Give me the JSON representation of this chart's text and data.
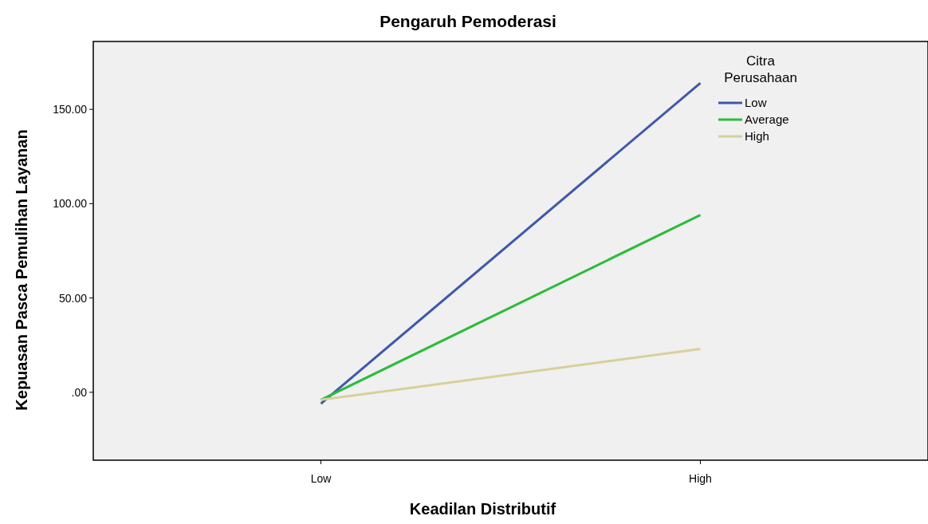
{
  "chart_data": {
    "type": "line",
    "title": "Pengaruh Pemoderasi",
    "xlabel": "Keadilan Distributif",
    "ylabel": "Kepuasan Pasca Pemulihan Layanan",
    "legend_title": "Citra Perusahaan",
    "legend": "top right",
    "categories": [
      "Low",
      "High"
    ],
    "ylim": [
      -36,
      186
    ],
    "yticks": [
      {
        "value": 0,
        "label": ".00"
      },
      {
        "value": 50,
        "label": "50.00"
      },
      {
        "value": 100,
        "label": "100.00"
      },
      {
        "value": 150,
        "label": "150.00"
      }
    ],
    "series": [
      {
        "name": "Low",
        "color": "#3f57ad",
        "values": [
          -6,
          164
        ]
      },
      {
        "name": "Average",
        "color": "#2cbb3c",
        "values": [
          -4,
          94
        ]
      },
      {
        "name": "High",
        "color": "#d8d09a",
        "values": [
          -4,
          23
        ]
      }
    ]
  }
}
